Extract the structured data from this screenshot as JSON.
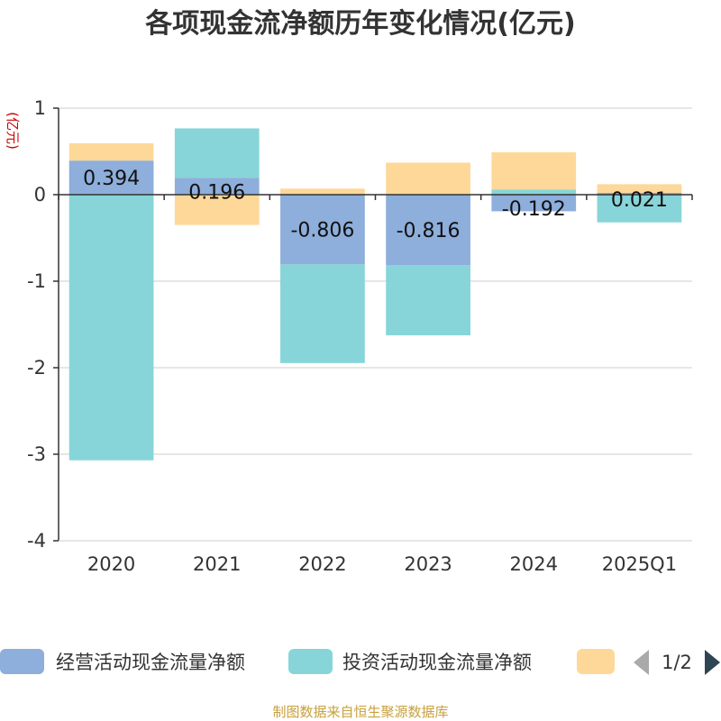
{
  "chart_data": {
    "type": "bar",
    "stacked": true,
    "title": "各项现金流净额历年变化情况(亿元)",
    "ylabel": "(亿元)",
    "xlabel": "",
    "categories": [
      "2020",
      "2021",
      "2022",
      "2023",
      "2024",
      "2025Q1"
    ],
    "ylim": [
      -4,
      1
    ],
    "yticks": [
      1,
      0,
      -1,
      -2,
      -3,
      -4
    ],
    "grid": true,
    "series": [
      {
        "name": "经营活动现金流量净额",
        "color": "#8eaedb",
        "values": [
          0.394,
          0.196,
          -0.806,
          -0.816,
          -0.192,
          0.021
        ],
        "labels": [
          "0.394",
          "0.196",
          "-0.806",
          "-0.816",
          "-0.192",
          "0.021"
        ]
      },
      {
        "name": "投资活动现金流量净额",
        "color": "#87d5d8",
        "values": [
          -3.07,
          0.57,
          -1.14,
          -0.81,
          0.06,
          -0.32
        ]
      },
      {
        "name": "",
        "color": "#fdd899",
        "values": [
          0.2,
          -0.35,
          0.07,
          0.37,
          0.43,
          0.1
        ]
      }
    ],
    "legend": {
      "position": "bottom",
      "page": "1/2"
    },
    "source": "制图数据来自恒生聚源数据库"
  }
}
